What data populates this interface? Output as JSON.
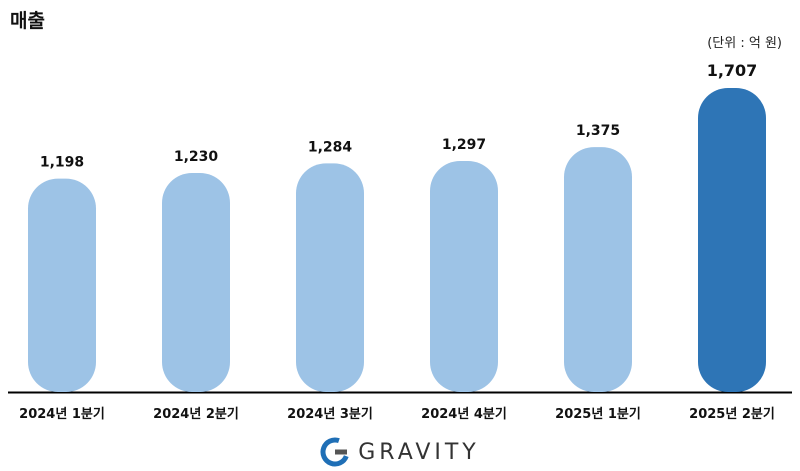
{
  "title": "매출",
  "unit_label": "(단위 : 억 원)",
  "logo_text": "GRAVITY",
  "colors": {
    "bar_default": "#9dc3e6",
    "bar_highlight": "#2e75b6",
    "axis": "#000000",
    "logo_blue": "#1f6fb6",
    "logo_gray": "#555555"
  },
  "chart_data": {
    "type": "bar",
    "title": "매출",
    "ylabel": "",
    "xlabel": "",
    "categories": [
      "2024년 1분기",
      "2024년 2분기",
      "2024년 3분기",
      "2024년 4분기",
      "2025년 1분기",
      "2025년 2분기"
    ],
    "values": [
      1198,
      1230,
      1284,
      1297,
      1375,
      1707
    ],
    "value_labels": [
      "1,198",
      "1,230",
      "1,284",
      "1,297",
      "1,375",
      "1,707"
    ],
    "highlight_index": 5,
    "ylim": [
      0,
      1707
    ],
    "grid": false,
    "legend": "none"
  }
}
